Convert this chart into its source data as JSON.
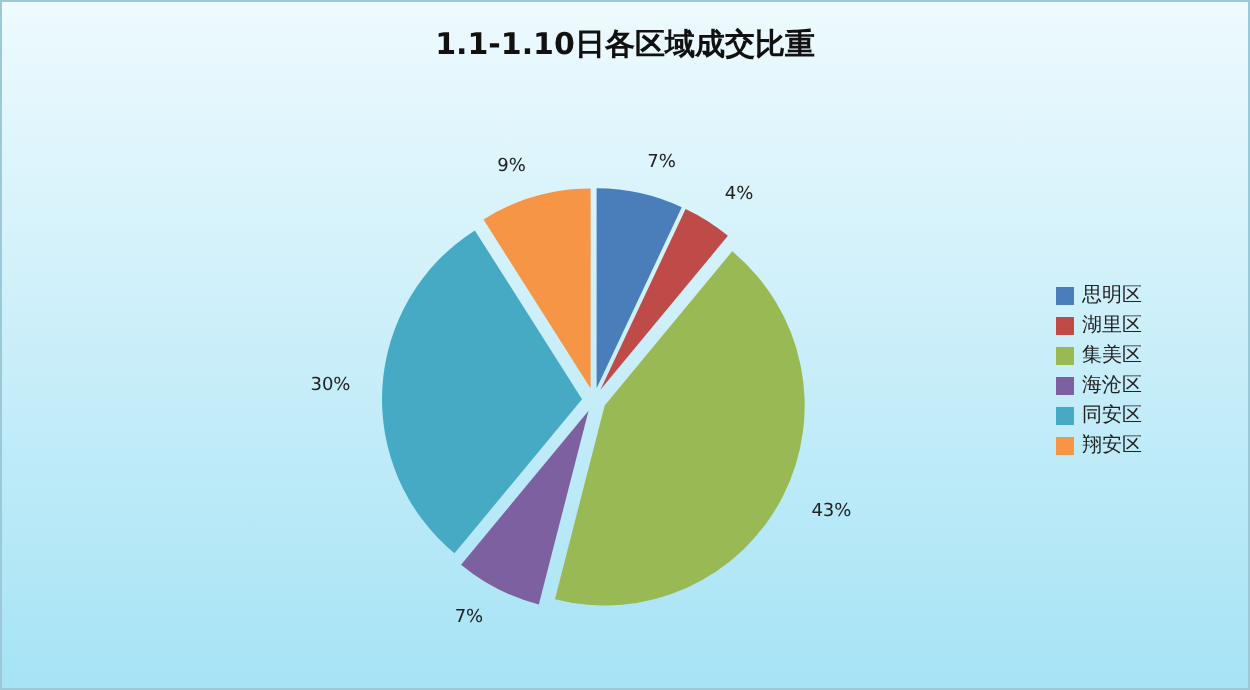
{
  "chart_data": {
    "type": "pie",
    "title": "1.1-1.10日各区域成交比重",
    "categories": [
      "思明区",
      "湖里区",
      "集美区",
      "海沧区",
      "同安区",
      "翔安区"
    ],
    "values": [
      7,
      4,
      43,
      7,
      30,
      9
    ],
    "colors": [
      "#4a7ebb",
      "#be4b48",
      "#98b954",
      "#7d60a0",
      "#46aac5",
      "#f69546"
    ],
    "value_labels": [
      "7%",
      "4%",
      "43%",
      "7%",
      "30%",
      "9%"
    ],
    "legend": "right"
  }
}
